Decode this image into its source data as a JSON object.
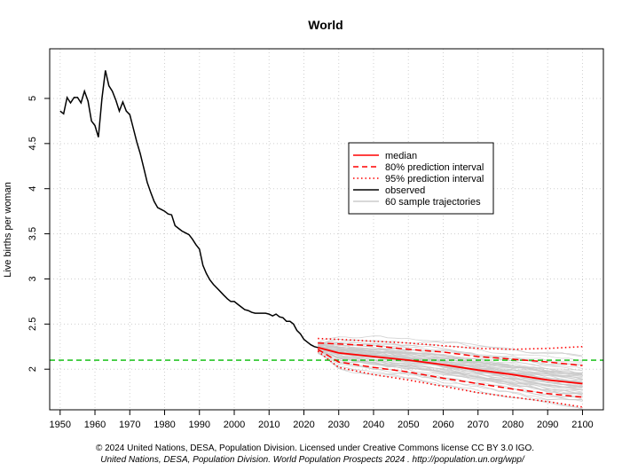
{
  "chart_data": {
    "type": "line",
    "title": "World",
    "xlabel": "",
    "ylabel": "Live births per woman",
    "xlim": [
      1947,
      2106
    ],
    "ylim": [
      1.55,
      5.55
    ],
    "x_ticks": [
      1950,
      1960,
      1970,
      1980,
      1990,
      2000,
      2010,
      2020,
      2030,
      2040,
      2050,
      2060,
      2070,
      2080,
      2090,
      2100
    ],
    "y_ticks": [
      2,
      2.5,
      3,
      3.5,
      4,
      4.5,
      5
    ],
    "grid": true,
    "legend_position": "right-center",
    "replacement_level": 2.1,
    "series": [
      {
        "name": "observed",
        "color": "#000000",
        "style": "solid",
        "points": [
          [
            1950,
            4.86
          ],
          [
            1951,
            4.83
          ],
          [
            1952,
            5.01
          ],
          [
            1953,
            4.95
          ],
          [
            1954,
            5.01
          ],
          [
            1955,
            5.01
          ],
          [
            1956,
            4.95
          ],
          [
            1957,
            5.08
          ],
          [
            1958,
            4.97
          ],
          [
            1959,
            4.75
          ],
          [
            1960,
            4.7
          ],
          [
            1961,
            4.57
          ],
          [
            1962,
            5.0
          ],
          [
            1963,
            5.31
          ],
          [
            1964,
            5.14
          ],
          [
            1965,
            5.08
          ],
          [
            1966,
            4.98
          ],
          [
            1967,
            4.86
          ],
          [
            1968,
            4.96
          ],
          [
            1969,
            4.86
          ],
          [
            1970,
            4.82
          ],
          [
            1971,
            4.67
          ],
          [
            1972,
            4.52
          ],
          [
            1973,
            4.39
          ],
          [
            1974,
            4.23
          ],
          [
            1975,
            4.07
          ],
          [
            1976,
            3.96
          ],
          [
            1977,
            3.86
          ],
          [
            1978,
            3.79
          ],
          [
            1979,
            3.77
          ],
          [
            1980,
            3.75
          ],
          [
            1981,
            3.72
          ],
          [
            1982,
            3.71
          ],
          [
            1983,
            3.59
          ],
          [
            1984,
            3.56
          ],
          [
            1985,
            3.53
          ],
          [
            1986,
            3.51
          ],
          [
            1987,
            3.49
          ],
          [
            1988,
            3.44
          ],
          [
            1989,
            3.38
          ],
          [
            1990,
            3.33
          ],
          [
            1991,
            3.15
          ],
          [
            1992,
            3.06
          ],
          [
            1993,
            2.99
          ],
          [
            1994,
            2.94
          ],
          [
            1995,
            2.9
          ],
          [
            1996,
            2.86
          ],
          [
            1997,
            2.82
          ],
          [
            1998,
            2.78
          ],
          [
            1999,
            2.75
          ],
          [
            2000,
            2.75
          ],
          [
            2001,
            2.72
          ],
          [
            2002,
            2.69
          ],
          [
            2003,
            2.66
          ],
          [
            2004,
            2.65
          ],
          [
            2005,
            2.63
          ],
          [
            2006,
            2.62
          ],
          [
            2007,
            2.62
          ],
          [
            2008,
            2.62
          ],
          [
            2009,
            2.62
          ],
          [
            2010,
            2.61
          ],
          [
            2011,
            2.59
          ],
          [
            2012,
            2.61
          ],
          [
            2013,
            2.58
          ],
          [
            2014,
            2.57
          ],
          [
            2015,
            2.53
          ],
          [
            2016,
            2.53
          ],
          [
            2017,
            2.5
          ],
          [
            2018,
            2.43
          ],
          [
            2019,
            2.39
          ],
          [
            2020,
            2.33
          ],
          [
            2021,
            2.3
          ],
          [
            2022,
            2.27
          ],
          [
            2023,
            2.25
          ],
          [
            2024,
            2.24
          ]
        ]
      },
      {
        "name": "median",
        "color": "#ff0000",
        "style": "solid",
        "points": [
          [
            2024,
            2.24
          ],
          [
            2030,
            2.18
          ],
          [
            2040,
            2.14
          ],
          [
            2050,
            2.1
          ],
          [
            2060,
            2.05
          ],
          [
            2070,
            1.99
          ],
          [
            2080,
            1.94
          ],
          [
            2090,
            1.88
          ],
          [
            2100,
            1.84
          ]
        ]
      },
      {
        "name": "80% prediction interval",
        "color": "#ff0000",
        "style": "dashed",
        "upper": [
          [
            2024,
            2.29
          ],
          [
            2030,
            2.28
          ],
          [
            2040,
            2.26
          ],
          [
            2050,
            2.22
          ],
          [
            2060,
            2.19
          ],
          [
            2070,
            2.14
          ],
          [
            2080,
            2.11
          ],
          [
            2090,
            2.08
          ],
          [
            2100,
            2.04
          ]
        ],
        "lower": [
          [
            2024,
            2.22
          ],
          [
            2030,
            2.08
          ],
          [
            2040,
            2.02
          ],
          [
            2050,
            1.97
          ],
          [
            2060,
            1.9
          ],
          [
            2070,
            1.84
          ],
          [
            2080,
            1.78
          ],
          [
            2090,
            1.73
          ],
          [
            2100,
            1.69
          ]
        ]
      },
      {
        "name": "95% prediction interval",
        "color": "#ff0000",
        "style": "dotted",
        "upper": [
          [
            2024,
            2.34
          ],
          [
            2030,
            2.33
          ],
          [
            2040,
            2.31
          ],
          [
            2050,
            2.29
          ],
          [
            2060,
            2.26
          ],
          [
            2070,
            2.23
          ],
          [
            2080,
            2.22
          ],
          [
            2090,
            2.23
          ],
          [
            2100,
            2.25
          ]
        ],
        "lower": [
          [
            2024,
            2.2
          ],
          [
            2030,
            2.02
          ],
          [
            2040,
            1.94
          ],
          [
            2050,
            1.88
          ],
          [
            2060,
            1.81
          ],
          [
            2070,
            1.74
          ],
          [
            2080,
            1.69
          ],
          [
            2090,
            1.64
          ],
          [
            2100,
            1.58
          ]
        ]
      },
      {
        "name": "60 sample trajectories",
        "color": "#c8c8c8",
        "style": "solid",
        "count": 60,
        "from": 2024,
        "to": 2100
      }
    ]
  },
  "credits": {
    "line1": "© 2024 United Nations, DESA, Population Division. Licensed under Creative Commons license CC BY 3.0 IGO.",
    "line2": "United Nations, DESA, Population Division. World Population Prospects 2024 . http://population.un.org/wpp/"
  }
}
